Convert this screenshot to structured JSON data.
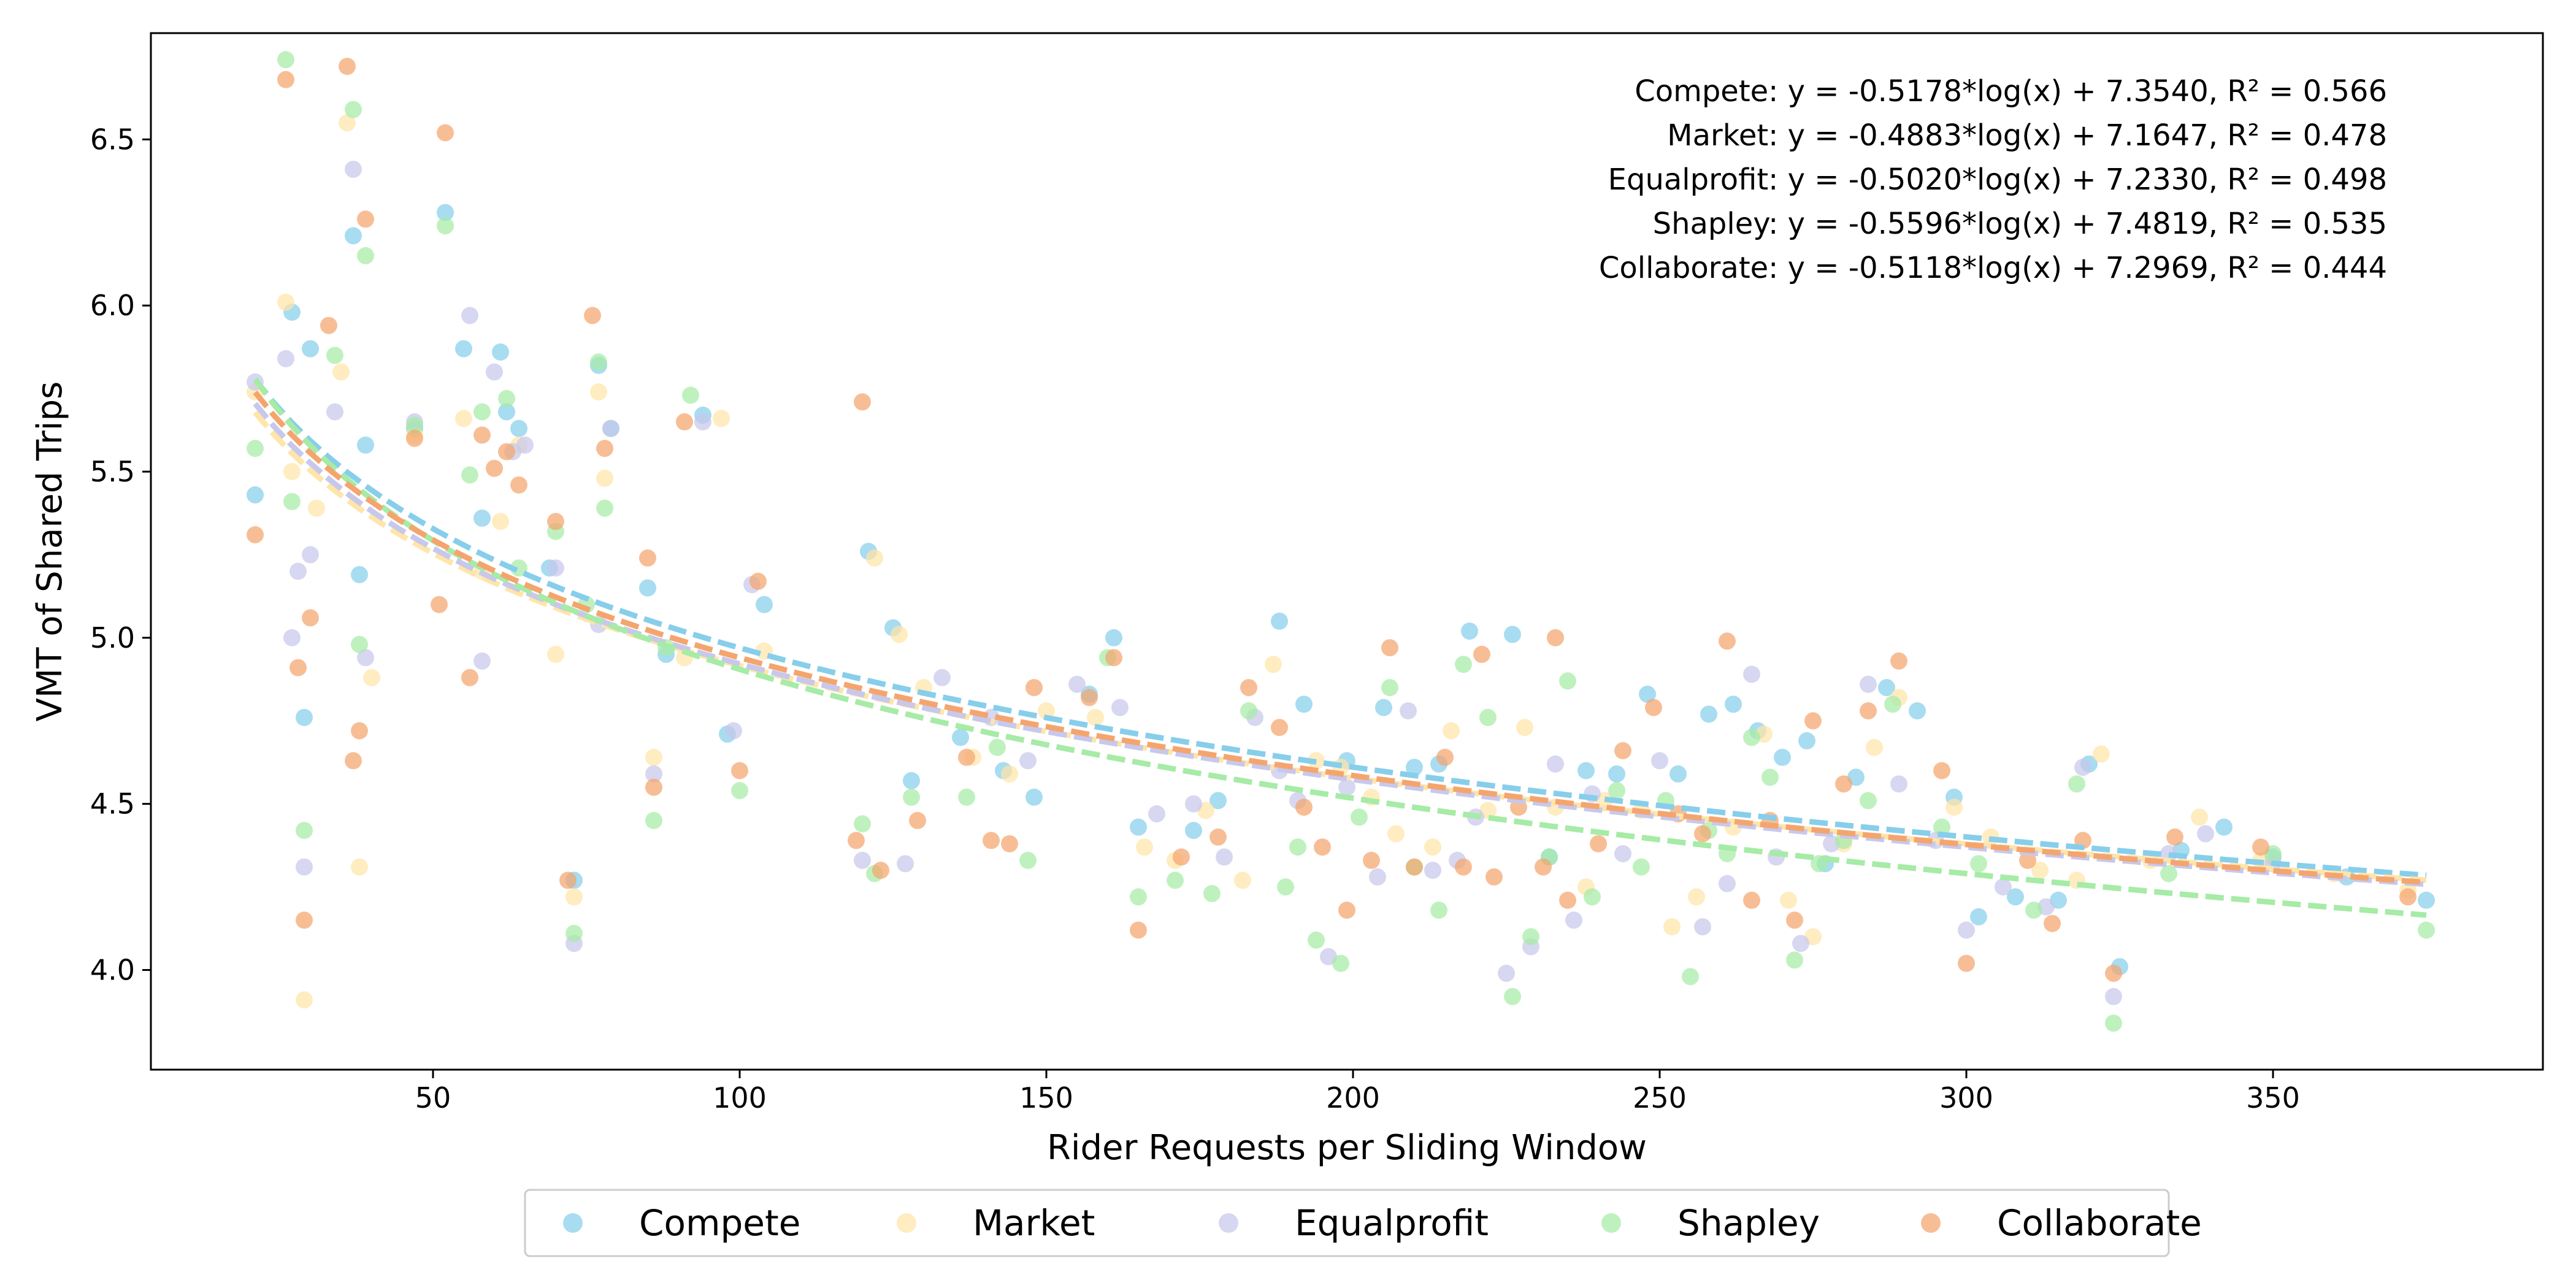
{
  "chart_data": {
    "type": "scatter",
    "title": "",
    "xlabel": "Rider Requests per Sliding Window",
    "ylabel": "VMT of Shared Trips",
    "xlim": [
      4,
      394
    ],
    "ylim": [
      3.7,
      6.82
    ],
    "xticks": [
      50,
      100,
      150,
      200,
      250,
      300,
      350
    ],
    "yticks": [
      4.0,
      4.5,
      5.0,
      5.5,
      6.0,
      6.5
    ],
    "grid": false,
    "legend_position": "bottom-center-outside",
    "fit_x_range": [
      21,
      375
    ],
    "series": [
      {
        "name": "Compete",
        "color": "#87CEEB",
        "fit": {
          "a": -0.5178,
          "b": 7.354,
          "r2": 0.566
        },
        "equation": "Compete: y = -0.5178*log(x) + 7.3540, R² = 0.566",
        "x": [
          21,
          27,
          29,
          30,
          37,
          38,
          39,
          47,
          52,
          55,
          58,
          61,
          62,
          64,
          69,
          73,
          77,
          79,
          85,
          88,
          94,
          98,
          104,
          121,
          125,
          128,
          136,
          143,
          148,
          157,
          161,
          165,
          174,
          178,
          188,
          192,
          199,
          205,
          210,
          214,
          219,
          226,
          232,
          238,
          243,
          248,
          253,
          258,
          262,
          266,
          270,
          274,
          277,
          282,
          287,
          292,
          298,
          302,
          308,
          315,
          320,
          325,
          335,
          342,
          350,
          362,
          375
        ],
        "y": [
          5.43,
          5.98,
          4.76,
          5.87,
          6.21,
          5.19,
          5.58,
          5.63,
          6.28,
          5.87,
          5.36,
          5.86,
          5.68,
          5.63,
          5.21,
          4.27,
          5.82,
          5.63,
          5.15,
          4.95,
          5.67,
          4.71,
          5.1,
          5.26,
          5.03,
          4.57,
          4.7,
          4.6,
          4.52,
          4.83,
          5.0,
          4.43,
          4.42,
          4.51,
          5.05,
          4.8,
          4.63,
          4.79,
          4.61,
          4.62,
          5.02,
          5.01,
          4.34,
          4.6,
          4.59,
          4.83,
          4.59,
          4.77,
          4.8,
          4.72,
          4.64,
          4.69,
          4.32,
          4.58,
          4.85,
          4.78,
          4.52,
          4.16,
          4.22,
          4.21,
          4.62,
          4.01,
          4.36,
          4.43,
          4.34,
          4.28,
          4.21
        ]
      },
      {
        "name": "Market",
        "color": "#FFE5A8",
        "fit": {
          "a": -0.4883,
          "b": 7.1647,
          "r2": 0.478
        },
        "equation": "Market: y = -0.4883*log(x) + 7.1647, R² = 0.478",
        "x": [
          21,
          26,
          27,
          29,
          31,
          35,
          36,
          38,
          40,
          47,
          55,
          58,
          61,
          64,
          70,
          73,
          77,
          78,
          86,
          91,
          97,
          104,
          122,
          126,
          130,
          138,
          144,
          150,
          158,
          166,
          171,
          176,
          182,
          187,
          194,
          198,
          203,
          207,
          213,
          216,
          222,
          228,
          233,
          238,
          241,
          247,
          252,
          256,
          262,
          267,
          271,
          275,
          280,
          285,
          289,
          298,
          304,
          312,
          318,
          322,
          330,
          338,
          348,
          360,
          372
        ],
        "y": [
          5.74,
          6.01,
          5.5,
          3.91,
          5.39,
          5.8,
          6.55,
          4.31,
          4.88,
          5.61,
          5.66,
          5.2,
          5.35,
          5.58,
          4.95,
          4.22,
          5.74,
          5.48,
          4.64,
          4.94,
          5.66,
          4.96,
          5.24,
          5.01,
          4.85,
          4.64,
          4.59,
          4.78,
          4.76,
          4.37,
          4.33,
          4.48,
          4.27,
          4.92,
          4.63,
          4.61,
          4.52,
          4.41,
          4.37,
          4.72,
          4.48,
          4.73,
          4.49,
          4.25,
          4.51,
          4.48,
          4.13,
          4.22,
          4.43,
          4.71,
          4.21,
          4.1,
          4.38,
          4.67,
          4.82,
          4.49,
          4.4,
          4.3,
          4.27,
          4.65,
          4.33,
          4.46,
          4.33,
          4.29,
          4.24
        ]
      },
      {
        "name": "Equalprofit",
        "color": "#C8C8EC",
        "fit": {
          "a": -0.502,
          "b": 7.233,
          "r2": 0.498
        },
        "equation": "Equalprofit: y = -0.5020*log(x) + 7.2330, R² = 0.498",
        "x": [
          21,
          26,
          27,
          28,
          29,
          30,
          34,
          37,
          39,
          47,
          56,
          58,
          60,
          63,
          65,
          70,
          73,
          77,
          79,
          86,
          94,
          99,
          102,
          120,
          127,
          133,
          141,
          147,
          155,
          162,
          168,
          174,
          179,
          184,
          188,
          191,
          196,
          199,
          204,
          209,
          213,
          217,
          220,
          225,
          229,
          233,
          236,
          239,
          244,
          250,
          257,
          261,
          265,
          269,
          273,
          278,
          284,
          289,
          295,
          300,
          306,
          313,
          319,
          324,
          333,
          339,
          350
        ],
        "y": [
          5.77,
          5.84,
          5.0,
          5.2,
          4.31,
          5.25,
          5.68,
          6.41,
          4.94,
          5.65,
          5.97,
          4.93,
          5.8,
          5.56,
          5.58,
          5.21,
          4.08,
          5.04,
          5.63,
          4.59,
          5.65,
          4.72,
          5.16,
          4.33,
          4.32,
          4.88,
          4.76,
          4.63,
          4.86,
          4.79,
          4.47,
          4.5,
          4.34,
          4.76,
          4.6,
          4.51,
          4.04,
          4.55,
          4.28,
          4.78,
          4.3,
          4.33,
          4.46,
          3.99,
          4.07,
          4.62,
          4.15,
          4.53,
          4.35,
          4.63,
          4.13,
          4.26,
          4.89,
          4.34,
          4.08,
          4.38,
          4.86,
          4.56,
          4.39,
          4.12,
          4.25,
          4.19,
          4.61,
          3.92,
          4.35,
          4.41,
          4.32
        ]
      },
      {
        "name": "Shapley",
        "color": "#A6EBA6",
        "fit": {
          "a": -0.5596,
          "b": 7.4819,
          "r2": 0.535
        },
        "equation": "Shapley: y = -0.5596*log(x) + 7.4819, R² = 0.535",
        "x": [
          21,
          26,
          27,
          29,
          34,
          37,
          38,
          39,
          47,
          52,
          56,
          58,
          62,
          64,
          70,
          73,
          75,
          77,
          78,
          86,
          88,
          92,
          100,
          120,
          122,
          128,
          137,
          142,
          147,
          160,
          165,
          171,
          177,
          183,
          189,
          191,
          194,
          198,
          201,
          206,
          210,
          214,
          218,
          222,
          226,
          229,
          232,
          235,
          239,
          243,
          247,
          251,
          255,
          258,
          261,
          265,
          268,
          272,
          276,
          280,
          284,
          288,
          296,
          302,
          311,
          318,
          324,
          333,
          350,
          375
        ],
        "y": [
          5.57,
          6.74,
          5.41,
          4.42,
          5.85,
          6.59,
          4.98,
          6.15,
          5.64,
          6.24,
          5.49,
          5.68,
          5.72,
          5.21,
          5.32,
          4.11,
          5.1,
          5.83,
          5.39,
          4.45,
          4.97,
          5.73,
          4.54,
          4.44,
          4.29,
          4.52,
          4.52,
          4.67,
          4.33,
          4.94,
          4.22,
          4.27,
          4.23,
          4.78,
          4.25,
          4.37,
          4.09,
          4.02,
          4.46,
          4.85,
          4.31,
          4.18,
          4.92,
          4.76,
          3.92,
          4.1,
          4.34,
          4.87,
          4.22,
          4.54,
          4.31,
          4.51,
          3.98,
          4.42,
          4.35,
          4.7,
          4.58,
          4.03,
          4.32,
          4.39,
          4.51,
          4.8,
          4.43,
          4.32,
          4.18,
          4.56,
          3.84,
          4.29,
          4.35,
          4.12
        ]
      },
      {
        "name": "Collaborate",
        "color": "#F4A56E",
        "fit": {
          "a": -0.5118,
          "b": 7.2969,
          "r2": 0.444
        },
        "equation": "Collaborate: y = -0.5118*log(x) + 7.2969, R² = 0.444",
        "x": [
          21,
          26,
          28,
          29,
          30,
          33,
          36,
          37,
          38,
          39,
          47,
          51,
          52,
          56,
          58,
          60,
          62,
          64,
          70,
          72,
          76,
          78,
          85,
          86,
          91,
          100,
          103,
          119,
          120,
          123,
          129,
          137,
          141,
          144,
          148,
          157,
          161,
          165,
          172,
          178,
          183,
          188,
          192,
          195,
          199,
          203,
          206,
          210,
          215,
          218,
          221,
          223,
          227,
          231,
          233,
          235,
          240,
          244,
          249,
          253,
          257,
          261,
          265,
          268,
          272,
          275,
          280,
          284,
          289,
          296,
          300,
          310,
          314,
          319,
          324,
          334,
          348,
          372
        ],
        "y": [
          5.31,
          6.68,
          4.91,
          4.15,
          5.06,
          5.94,
          6.72,
          4.63,
          4.72,
          6.26,
          5.6,
          5.1,
          6.52,
          4.88,
          5.61,
          5.51,
          5.56,
          5.46,
          5.35,
          4.27,
          5.97,
          5.57,
          5.24,
          4.55,
          5.65,
          4.6,
          5.17,
          4.39,
          5.71,
          4.3,
          4.45,
          4.64,
          4.39,
          4.38,
          4.85,
          4.82,
          4.94,
          4.12,
          4.34,
          4.4,
          4.85,
          4.73,
          4.49,
          4.37,
          4.18,
          4.33,
          4.97,
          4.31,
          4.64,
          4.31,
          4.95,
          4.28,
          4.49,
          4.31,
          5.0,
          4.21,
          4.38,
          4.66,
          4.79,
          4.47,
          4.41,
          4.99,
          4.21,
          4.45,
          4.15,
          4.75,
          4.56,
          4.78,
          4.93,
          4.6,
          4.02,
          4.33,
          4.14,
          4.39,
          3.99,
          4.4,
          4.37,
          4.22
        ]
      }
    ]
  }
}
